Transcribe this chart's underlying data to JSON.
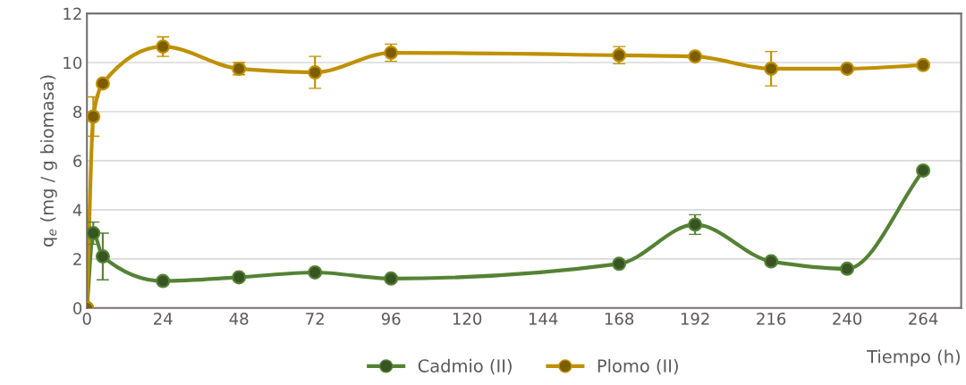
{
  "chart_data": {
    "type": "line",
    "xlabel": "Tiempo (h)",
    "ylabel": "q$_{e}$ (mg / g biomasa)",
    "x": [
      0,
      2,
      5,
      24,
      48,
      72,
      96,
      168,
      192,
      216,
      240,
      264
    ],
    "xlim": [
      0,
      276
    ],
    "xticks": [
      0,
      24,
      48,
      72,
      96,
      120,
      144,
      168,
      192,
      216,
      240,
      264
    ],
    "ylim": [
      0,
      12
    ],
    "yticks": [
      0,
      2,
      4,
      6,
      8,
      10,
      12
    ],
    "grid": "y",
    "legend": "bottom",
    "marker": "circle",
    "line_style": "solid",
    "series": [
      {
        "name": "Cadmio (II)",
        "color": "#548235",
        "values": [
          0,
          3.05,
          2.1,
          1.1,
          1.25,
          1.45,
          1.2,
          1.8,
          3.4,
          1.9,
          1.6,
          5.6
        ],
        "errors": [
          null,
          0.45,
          0.95,
          null,
          null,
          null,
          null,
          0.1,
          0.4,
          null,
          null,
          null
        ]
      },
      {
        "name": "Plomo (II)",
        "color": "#bf9000",
        "values": [
          0,
          7.8,
          9.15,
          10.65,
          9.75,
          9.6,
          10.4,
          10.3,
          10.25,
          9.75,
          9.75,
          9.9
        ],
        "errors": [
          null,
          0.8,
          null,
          0.4,
          0.25,
          0.65,
          0.35,
          0.35,
          null,
          0.7,
          null,
          null
        ]
      }
    ]
  }
}
